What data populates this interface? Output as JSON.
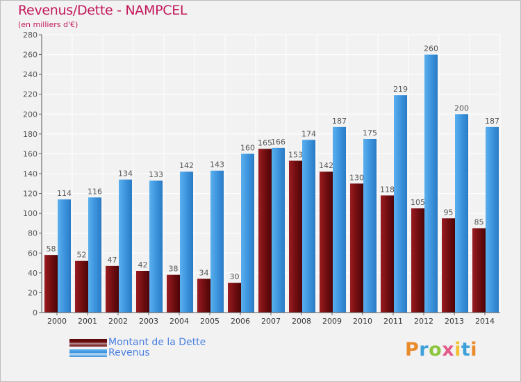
{
  "title": "Revenus/Dette - NAMPCEL",
  "subtitle": "(en milliers d'€)",
  "logo": {
    "text": "Proxiti",
    "colors": [
      "#e98a2b",
      "#3ea0d8",
      "#8cc63f",
      "#e25b8a",
      "#f3c131",
      "#3ea0d8",
      "#e98a2b"
    ]
  },
  "colors": {
    "debt": "#6e0d10",
    "revenue": "#3b92dc",
    "title": "#c2185b",
    "legend_text": "#4a7fe0"
  },
  "chart_data": {
    "type": "bar",
    "title": "Revenus/Dette - NAMPCEL",
    "subtitle": "(en milliers d'€)",
    "categories": [
      "2000",
      "2001",
      "2002",
      "2003",
      "2004",
      "2005",
      "2006",
      "2007",
      "2008",
      "2009",
      "2010",
      "2011",
      "2012",
      "2013",
      "2014"
    ],
    "series": [
      {
        "name": "Montant de la Dette",
        "values": [
          58,
          52,
          47,
          42,
          38,
          34,
          30,
          165,
          153,
          142,
          130,
          118,
          105,
          95,
          85
        ]
      },
      {
        "name": "Revenus",
        "values": [
          114,
          116,
          134,
          133,
          142,
          143,
          160,
          166,
          174,
          187,
          175,
          219,
          260,
          200,
          187
        ]
      }
    ],
    "y_ticks": [
      0,
      20,
      40,
      60,
      80,
      100,
      120,
      140,
      160,
      180,
      200,
      220,
      240,
      260,
      280
    ],
    "ylim": [
      0,
      280
    ],
    "grid": true,
    "legend": "bottom-left",
    "xlabel": "",
    "ylabel": ""
  }
}
